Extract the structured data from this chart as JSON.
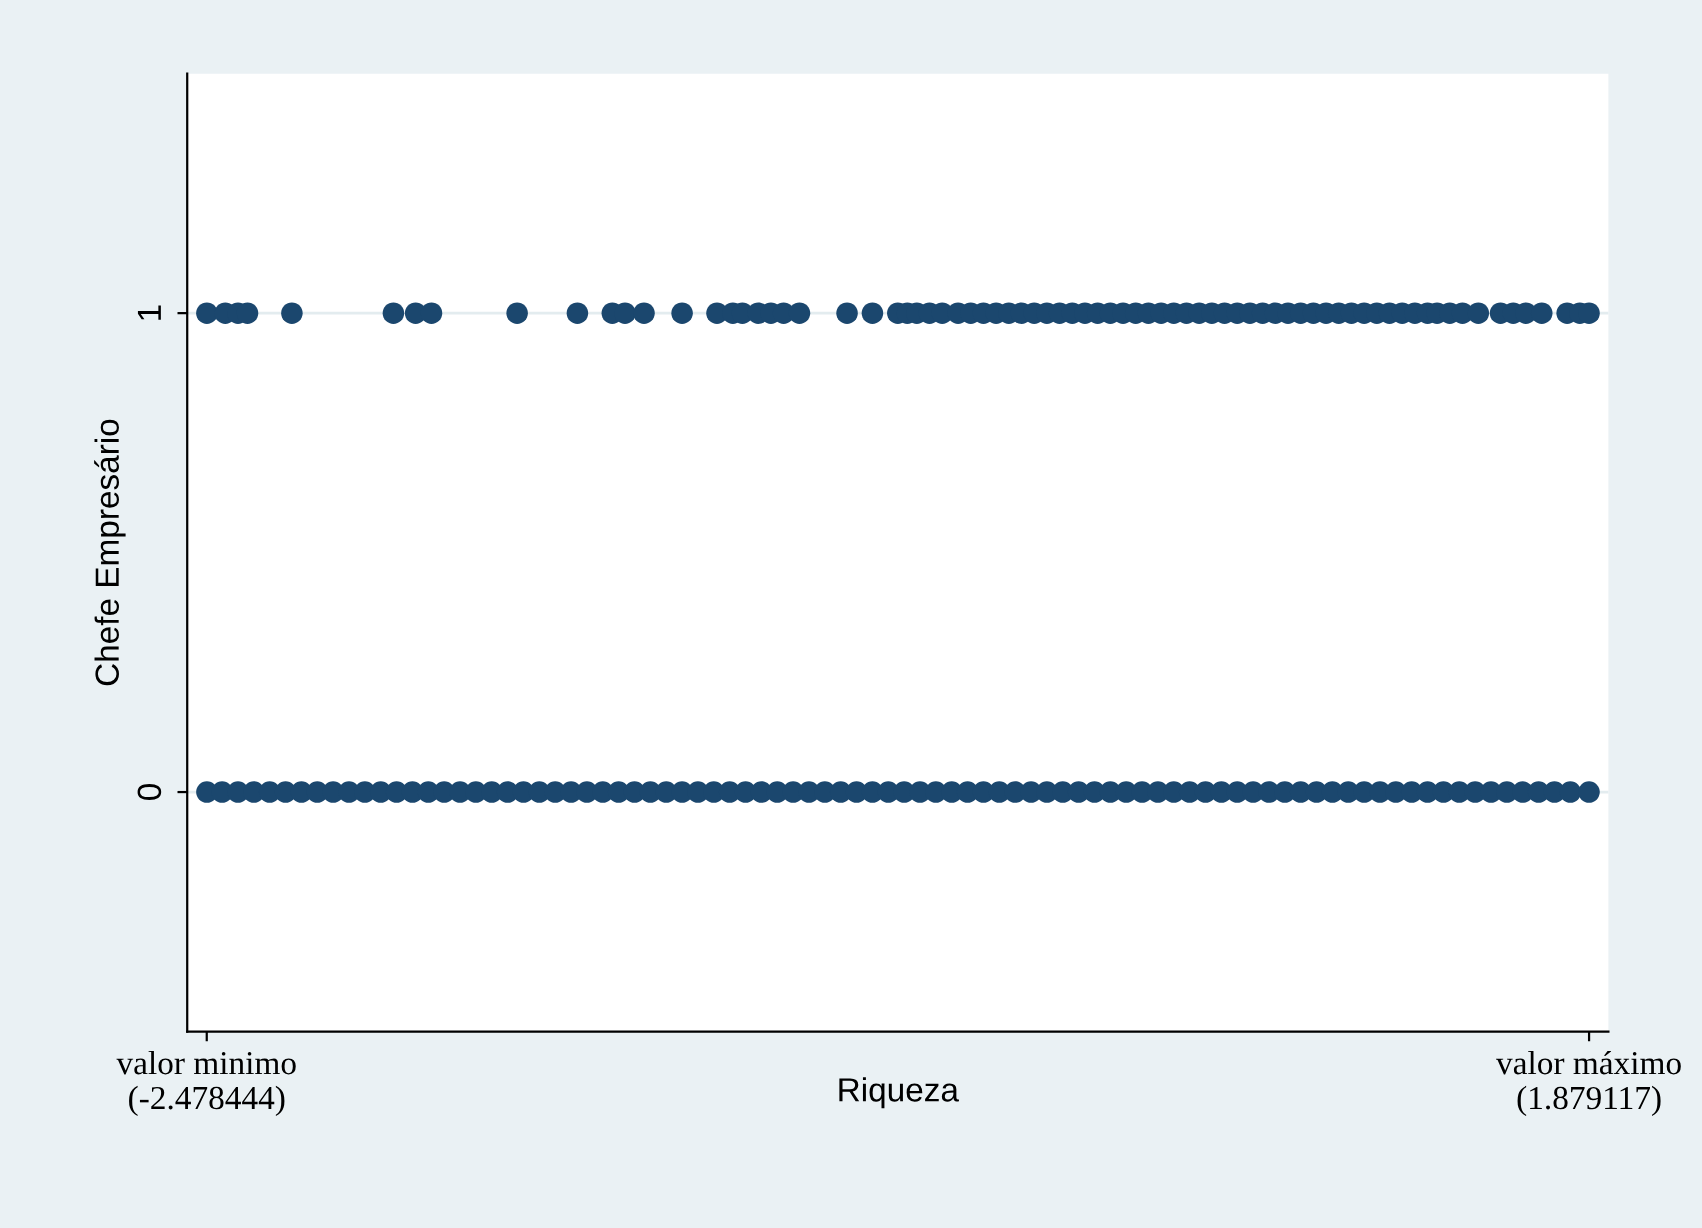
{
  "chart_data": {
    "type": "scatter",
    "xlabel": "Riqueza",
    "ylabel": "Chefe Empresário",
    "xlim": [
      -2.54,
      1.94
    ],
    "ylim": [
      -0.5,
      1.5
    ],
    "xticks": [
      {
        "value": -2.478444,
        "label": "valor minimo\n(-2.478444)"
      },
      {
        "value": 1.879117,
        "label": "valor máximo\n(1.879117)"
      }
    ],
    "yticks": [
      0,
      1
    ],
    "grid": "y",
    "marker": "circle",
    "series": [
      {
        "color": "#1b476e",
        "x": [
          -2.478,
          -2.42,
          -2.38,
          -2.35,
          -2.21,
          -1.89,
          -1.82,
          -1.77,
          -1.5,
          -1.31,
          -1.2,
          -1.16,
          -1.1,
          -0.98,
          -0.87,
          -0.82,
          -0.79,
          -0.74,
          -0.7,
          -0.66,
          -0.61,
          -0.46,
          -0.38,
          -0.3,
          -0.27,
          -0.24,
          -0.2,
          -0.16,
          -0.11,
          -0.07,
          -0.03,
          0.01,
          0.05,
          0.09,
          0.13,
          0.17,
          0.21,
          0.25,
          0.29,
          0.33,
          0.37,
          0.41,
          0.45,
          0.49,
          0.53,
          0.57,
          0.61,
          0.65,
          0.69,
          0.73,
          0.77,
          0.81,
          0.85,
          0.89,
          0.93,
          0.97,
          1.01,
          1.05,
          1.09,
          1.13,
          1.17,
          1.21,
          1.25,
          1.29,
          1.33,
          1.37,
          1.4,
          1.44,
          1.48,
          1.53,
          1.6,
          1.64,
          1.68,
          1.73,
          1.81,
          1.85,
          1.879
        ],
        "values": [
          1,
          1,
          1,
          1,
          1,
          1,
          1,
          1,
          1,
          1,
          1,
          1,
          1,
          1,
          1,
          1,
          1,
          1,
          1,
          1,
          1,
          1,
          1,
          1,
          1,
          1,
          1,
          1,
          1,
          1,
          1,
          1,
          1,
          1,
          1,
          1,
          1,
          1,
          1,
          1,
          1,
          1,
          1,
          1,
          1,
          1,
          1,
          1,
          1,
          1,
          1,
          1,
          1,
          1,
          1,
          1,
          1,
          1,
          1,
          1,
          1,
          1,
          1,
          1,
          1,
          1,
          1,
          1,
          1,
          1,
          1,
          1,
          1,
          1,
          1,
          1,
          1
        ]
      },
      {
        "color": "#1b476e",
        "x": [
          -2.478,
          -2.43,
          -2.38,
          -2.33,
          -2.28,
          -2.23,
          -2.18,
          -2.13,
          -2.08,
          -2.03,
          -1.98,
          -1.93,
          -1.88,
          -1.83,
          -1.78,
          -1.73,
          -1.68,
          -1.63,
          -1.58,
          -1.53,
          -1.48,
          -1.43,
          -1.38,
          -1.33,
          -1.28,
          -1.23,
          -1.18,
          -1.13,
          -1.08,
          -1.03,
          -0.98,
          -0.93,
          -0.88,
          -0.83,
          -0.78,
          -0.73,
          -0.68,
          -0.63,
          -0.58,
          -0.53,
          -0.48,
          -0.43,
          -0.38,
          -0.33,
          -0.28,
          -0.23,
          -0.18,
          -0.13,
          -0.08,
          -0.03,
          0.02,
          0.07,
          0.12,
          0.17,
          0.22,
          0.27,
          0.32,
          0.37,
          0.42,
          0.47,
          0.52,
          0.57,
          0.62,
          0.67,
          0.72,
          0.77,
          0.82,
          0.87,
          0.92,
          0.97,
          1.02,
          1.07,
          1.12,
          1.17,
          1.22,
          1.27,
          1.32,
          1.37,
          1.42,
          1.47,
          1.52,
          1.57,
          1.62,
          1.67,
          1.72,
          1.77,
          1.82,
          1.879
        ],
        "values": [
          0,
          0,
          0,
          0,
          0,
          0,
          0,
          0,
          0,
          0,
          0,
          0,
          0,
          0,
          0,
          0,
          0,
          0,
          0,
          0,
          0,
          0,
          0,
          0,
          0,
          0,
          0,
          0,
          0,
          0,
          0,
          0,
          0,
          0,
          0,
          0,
          0,
          0,
          0,
          0,
          0,
          0,
          0,
          0,
          0,
          0,
          0,
          0,
          0,
          0,
          0,
          0,
          0,
          0,
          0,
          0,
          0,
          0,
          0,
          0,
          0,
          0,
          0,
          0,
          0,
          0,
          0,
          0,
          0,
          0,
          0,
          0,
          0,
          0,
          0,
          0,
          0,
          0,
          0,
          0,
          0,
          0,
          0,
          0,
          0,
          0,
          0,
          0
        ]
      }
    ]
  }
}
